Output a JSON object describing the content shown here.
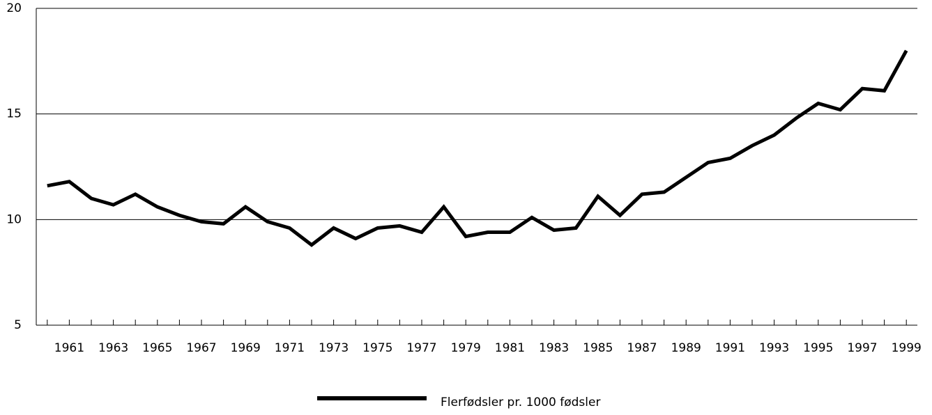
{
  "chart_data": {
    "type": "line",
    "categories": [
      null,
      "1961",
      null,
      "1963",
      null,
      "1965",
      null,
      "1967",
      null,
      "1969",
      null,
      "1971",
      null,
      "1973",
      null,
      "1975",
      null,
      "1977",
      null,
      "1979",
      null,
      "1981",
      null,
      "1983",
      null,
      "1985",
      null,
      "1987",
      null,
      "1989",
      null,
      "1991",
      null,
      "1993",
      null,
      "1995",
      null,
      "1997",
      null,
      "1999"
    ],
    "series": [
      {
        "name": "Flerfødsler pr. 1000 fødsler",
        "color": "#000000",
        "values": [
          11.6,
          11.8,
          11.0,
          10.7,
          11.2,
          10.6,
          10.2,
          9.9,
          9.8,
          10.6,
          9.9,
          9.6,
          8.8,
          9.6,
          9.1,
          9.6,
          9.7,
          9.4,
          10.6,
          9.2,
          9.4,
          9.4,
          10.1,
          9.5,
          9.6,
          11.1,
          10.2,
          11.2,
          11.3,
          12.0,
          12.7,
          12.9,
          13.5,
          14.0,
          14.8,
          15.5,
          15.2,
          16.2,
          16.1,
          18.0
        ]
      }
    ],
    "ylim": [
      5,
      20
    ],
    "yticks": [
      5,
      10,
      15,
      20
    ],
    "grid": true,
    "legend": "bottom"
  }
}
